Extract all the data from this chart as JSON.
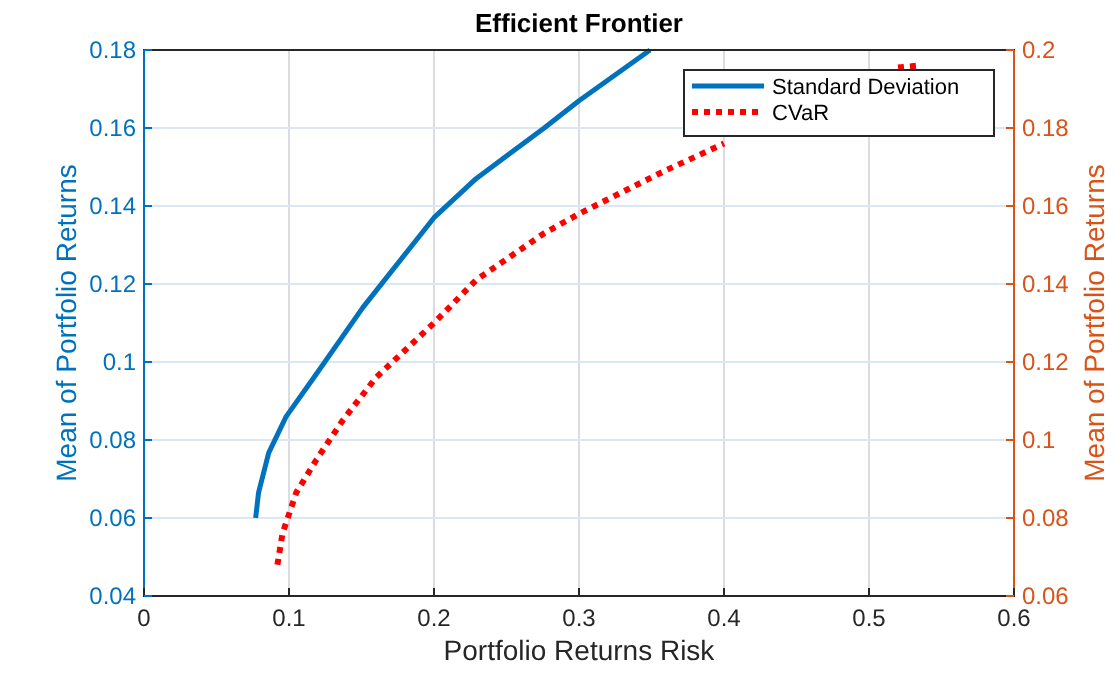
{
  "chart_data": {
    "type": "line",
    "title": "Efficient Frontier",
    "xlabel": "Portfolio Returns Risk",
    "ylabel": "Mean of Portfolio Returns",
    "y2label": "Mean of Portfolio Returns",
    "xlim": [
      0,
      0.6
    ],
    "xticks": [
      0,
      0.1,
      0.2,
      0.3,
      0.4,
      0.5,
      0.6
    ],
    "ylim": [
      0.04,
      0.18
    ],
    "yticks": [
      0.04,
      0.06,
      0.08,
      0.1,
      0.12,
      0.14,
      0.16,
      0.18
    ],
    "y2lim": [
      0.06,
      0.2
    ],
    "y2ticks": [
      0.06,
      0.08,
      0.1,
      0.12,
      0.14,
      0.16,
      0.18,
      0.2
    ],
    "grid": true,
    "legend": "top right",
    "marker": "none",
    "series": [
      {
        "name": "Standard Deviation",
        "color": "#0072bd",
        "line_style": "solid",
        "x": [
          0.077,
          0.079,
          0.086,
          0.098,
          0.119,
          0.151,
          0.2,
          0.229,
          0.276,
          0.3,
          0.349
        ],
        "values": [
          0.06,
          0.0665,
          0.0767,
          0.086,
          0.097,
          0.114,
          0.137,
          0.147,
          0.16,
          0.167,
          0.18
        ]
      },
      {
        "name": "CVaR",
        "color": "#ff0000",
        "line_style": "dotted",
        "axis": "y2",
        "x": [
          0.092,
          0.0955,
          0.105,
          0.119,
          0.137,
          0.16,
          0.2,
          0.229,
          0.276,
          0.3,
          0.359,
          0.4,
          0.46,
          0.52,
          0.534
        ],
        "values": [
          0.068,
          0.076,
          0.0865,
          0.095,
          0.105,
          0.116,
          0.13,
          0.141,
          0.153,
          0.158,
          0.169,
          0.176,
          null,
          0.1955,
          0.196
        ]
      }
    ]
  }
}
